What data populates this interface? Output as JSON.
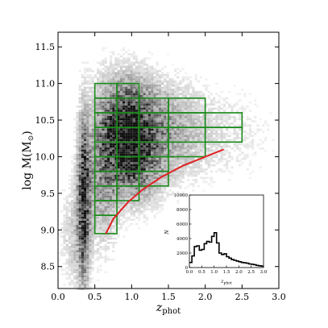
{
  "chart_data": [
    {
      "type": "heatmap",
      "title": "",
      "xlabel": "z",
      "xlabel_sub": "phot",
      "ylabel": "log M(M",
      "ylabel_symbol": "⊙",
      "ylabel_close": ")",
      "xlim": [
        0.0,
        3.0
      ],
      "ylim": [
        8.2,
        11.7
      ],
      "xticks": [
        "0.0",
        "0.5",
        "1.0",
        "1.5",
        "2.0",
        "2.5",
        "3.0"
      ],
      "yticks": [
        "8.5",
        "9.0",
        "9.5",
        "10.0",
        "10.5",
        "11.0",
        "11.5"
      ],
      "density_colormap": "gray_r",
      "density_blobs": [
        {
          "x": 0.35,
          "y": 9.4,
          "sx": 0.06,
          "sy": 0.75,
          "amp": 0.85
        },
        {
          "x": 0.6,
          "y": 9.9,
          "sx": 0.15,
          "sy": 0.7,
          "amp": 0.45
        },
        {
          "x": 0.9,
          "y": 10.3,
          "sx": 0.18,
          "sy": 0.45,
          "amp": 1.0
        },
        {
          "x": 1.15,
          "y": 10.2,
          "sx": 0.2,
          "sy": 0.5,
          "amp": 0.55
        },
        {
          "x": 1.5,
          "y": 10.35,
          "sx": 0.3,
          "sy": 0.45,
          "amp": 0.3
        },
        {
          "x": 2.2,
          "y": 10.3,
          "sx": 0.5,
          "sy": 0.45,
          "amp": 0.12
        },
        {
          "x": 0.2,
          "y": 8.9,
          "sx": 0.12,
          "sy": 0.5,
          "amp": 0.18
        }
      ],
      "grid_color": "#1a8a1a",
      "bins": [
        {
          "z": [
            0.5,
            0.8
          ],
          "m": [
            [
              8.95,
              9.2
            ],
            [
              9.2,
              9.4
            ],
            [
              9.4,
              9.6
            ],
            [
              9.6,
              9.8
            ],
            [
              9.8,
              10.0
            ],
            [
              10.0,
              10.2
            ],
            [
              10.2,
              10.4
            ],
            [
              10.4,
              10.6
            ],
            [
              10.6,
              10.8
            ],
            [
              10.8,
              11.0
            ]
          ]
        },
        {
          "z": [
            0.8,
            1.1
          ],
          "m": [
            [
              9.4,
              9.6
            ],
            [
              9.6,
              9.8
            ],
            [
              9.8,
              10.0
            ],
            [
              10.0,
              10.2
            ],
            [
              10.2,
              10.4
            ],
            [
              10.4,
              10.6
            ],
            [
              10.6,
              10.8
            ],
            [
              10.8,
              11.0
            ]
          ]
        },
        {
          "z": [
            1.1,
            1.5
          ],
          "m": [
            [
              9.6,
              9.8
            ],
            [
              9.8,
              10.0
            ],
            [
              10.0,
              10.2
            ],
            [
              10.2,
              10.4
            ],
            [
              10.4,
              10.6
            ],
            [
              10.6,
              10.8
            ]
          ]
        },
        {
          "z": [
            1.5,
            2.0
          ],
          "m": [
            [
              10.0,
              10.2
            ],
            [
              10.2,
              10.4
            ],
            [
              10.4,
              10.6
            ],
            [
              10.6,
              10.8
            ]
          ]
        },
        {
          "z": [
            2.0,
            2.5
          ],
          "m": [
            [
              10.2,
              10.4
            ],
            [
              10.4,
              10.6
            ]
          ]
        }
      ],
      "limit_color": "#e02020",
      "limit_line": {
        "x": [
          0.65,
          0.75,
          0.95,
          1.15,
          1.4,
          1.7,
          2.0,
          2.25
        ],
        "y": [
          8.95,
          9.15,
          9.38,
          9.55,
          9.72,
          9.88,
          10.0,
          10.1
        ]
      }
    },
    {
      "type": "line",
      "title": "",
      "xlabel": "z",
      "xlabel_sub": "phot",
      "ylabel": "N",
      "xlim": [
        0.0,
        3.0
      ],
      "ylim": [
        0,
        10000
      ],
      "xticks": [
        "0.0",
        "0.5",
        "1.0",
        "1.5",
        "2.0",
        "2.5",
        "3.0"
      ],
      "yticks": [
        "0",
        "2000",
        "4000",
        "6000",
        "8000",
        "10000"
      ],
      "bin_edges": [
        0.0,
        0.1,
        0.2,
        0.3,
        0.4,
        0.5,
        0.6,
        0.7,
        0.8,
        0.9,
        1.0,
        1.1,
        1.2,
        1.3,
        1.4,
        1.5,
        1.6,
        1.7,
        1.8,
        1.9,
        2.0,
        2.1,
        2.2,
        2.3,
        2.4,
        2.5,
        2.6,
        2.7,
        2.8,
        2.9,
        3.0
      ],
      "counts": [
        700,
        1600,
        2900,
        3000,
        2400,
        2500,
        3300,
        3600,
        3500,
        4300,
        4800,
        3400,
        2000,
        1800,
        1900,
        1500,
        1300,
        1100,
        1000,
        900,
        800,
        700,
        650,
        600,
        500,
        450,
        400,
        300,
        250,
        200
      ]
    }
  ]
}
